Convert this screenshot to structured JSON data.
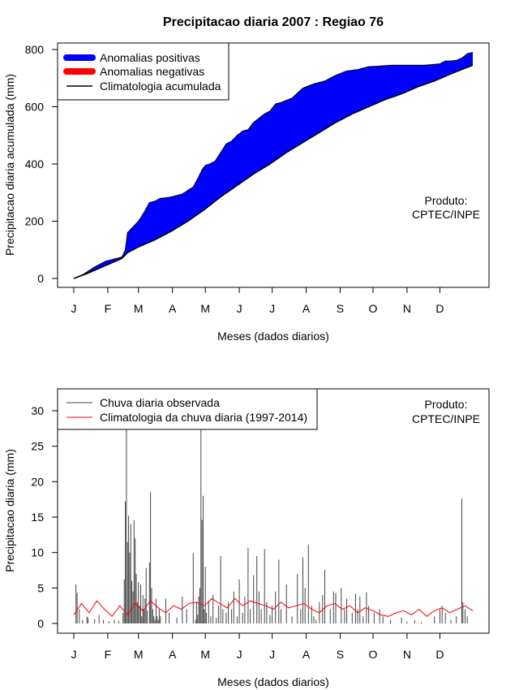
{
  "figure_title": "Precipitacao diaria 2007 : Regiao 76",
  "chart_data": [
    {
      "type": "area",
      "title": "Precipitacao diaria 2007 : Regiao 76",
      "xlabel": "Meses (dados diarios)",
      "ylabel": "Precipitacao diaria acumulada (mm)",
      "ylim": [
        0,
        800
      ],
      "yticks": [
        0,
        200,
        400,
        600,
        800
      ],
      "xlim": [
        1,
        365
      ],
      "month_ticks": {
        "days": [
          1,
          32,
          60,
          91,
          121,
          152,
          182,
          213,
          244,
          274,
          305,
          335
        ],
        "labels": [
          "J",
          "F",
          "M",
          "A",
          "M",
          "J",
          "J",
          "A",
          "S",
          "O",
          "N",
          "D"
        ]
      },
      "legend": [
        "Anomalias positivas",
        "Anomalias negativas",
        "Climatologia acumulada"
      ],
      "legend_position": "top-left",
      "annotation": [
        "Produto:",
        "CPTEC/INPE"
      ],
      "colors": {
        "positive": "#0000ff",
        "negative": "#ff0000",
        "line": "#000000"
      },
      "observed_cumulative": {
        "day": [
          1,
          10,
          20,
          30,
          40,
          45,
          48,
          50,
          60,
          65,
          70,
          75,
          80,
          85,
          90,
          100,
          110,
          115,
          118,
          121,
          125,
          130,
          135,
          140,
          145,
          150,
          155,
          160,
          165,
          170,
          175,
          180,
          185,
          190,
          200,
          210,
          220,
          230,
          240,
          250,
          260,
          270,
          280,
          290,
          300,
          310,
          320,
          330,
          335,
          340,
          345,
          350,
          355,
          360,
          365
        ],
        "mm": [
          0,
          15,
          40,
          60,
          70,
          75,
          100,
          160,
          200,
          230,
          265,
          270,
          280,
          282,
          285,
          295,
          320,
          355,
          380,
          395,
          400,
          410,
          440,
          470,
          480,
          500,
          515,
          520,
          545,
          560,
          575,
          585,
          610,
          615,
          630,
          665,
          680,
          690,
          710,
          725,
          730,
          740,
          742,
          745,
          745,
          745,
          745,
          748,
          750,
          760,
          760,
          762,
          770,
          785,
          790
        ]
      },
      "climatology_cumulative": {
        "day": [
          1,
          15,
          30,
          45,
          50,
          60,
          75,
          90,
          105,
          120,
          135,
          150,
          165,
          180,
          195,
          210,
          225,
          240,
          255,
          270,
          285,
          300,
          315,
          330,
          345,
          365
        ],
        "mm": [
          0,
          20,
          45,
          70,
          90,
          110,
          135,
          165,
          200,
          240,
          285,
          325,
          365,
          400,
          440,
          475,
          510,
          545,
          575,
          600,
          625,
          645,
          670,
          690,
          715,
          745
        ]
      }
    },
    {
      "type": "bar",
      "xlabel": "Meses (dados diarios)",
      "ylabel": "Precipitacao diaria (mm)",
      "ylim": [
        0,
        32
      ],
      "yticks": [
        0,
        5,
        10,
        15,
        20,
        25,
        30
      ],
      "xlim": [
        1,
        365
      ],
      "month_ticks": {
        "days": [
          1,
          32,
          60,
          91,
          121,
          152,
          182,
          213,
          244,
          274,
          305,
          335
        ],
        "labels": [
          "J",
          "F",
          "M",
          "A",
          "M",
          "J",
          "J",
          "A",
          "S",
          "O",
          "N",
          "D"
        ]
      },
      "legend": [
        "Chuva diaria observada",
        "Climatologia da chuva diaria (1997-2014)"
      ],
      "legend_position": "top-left",
      "annotation": [
        "Produto:",
        "CPTEC/INPE"
      ],
      "colors": {
        "observed": "#444444",
        "climatology": "#ff0000"
      },
      "observed_daily": {
        "day": [
          3,
          4,
          6,
          9,
          13,
          14,
          20,
          24,
          28,
          33,
          38,
          42,
          46,
          47,
          48,
          49,
          50,
          51,
          52,
          53,
          54,
          55,
          56,
          57,
          58,
          59,
          60,
          61,
          62,
          63,
          64,
          65,
          66,
          67,
          68,
          70,
          71,
          72,
          73,
          74,
          75,
          76,
          77,
          78,
          79,
          80,
          85,
          88,
          95,
          100,
          104,
          110,
          112,
          113,
          114,
          115,
          116,
          117,
          118,
          119,
          120,
          121,
          122,
          124,
          126,
          128,
          131,
          133,
          135,
          137,
          140,
          142,
          145,
          147,
          150,
          152,
          155,
          157,
          160,
          162,
          165,
          168,
          170,
          172,
          175,
          177,
          180,
          182,
          185,
          188,
          190,
          195,
          200,
          205,
          208,
          210,
          212,
          215,
          218,
          220,
          222,
          225,
          228,
          230,
          235,
          238,
          240,
          245,
          248,
          250,
          255,
          258,
          260,
          262,
          265,
          268,
          270,
          275,
          280,
          283,
          290,
          300,
          305,
          312,
          318,
          330,
          335,
          337,
          340,
          345,
          350,
          355,
          356,
          358,
          360
        ],
        "mm": [
          5.5,
          4.3,
          2.0,
          0.5,
          1.0,
          0.8,
          0.6,
          1.2,
          0.5,
          0.3,
          0.5,
          0.4,
          1.5,
          6.2,
          17.2,
          32,
          11.5,
          15.2,
          10.0,
          14.0,
          6.0,
          4.5,
          14.6,
          12.0,
          7.0,
          3.0,
          5.8,
          2.5,
          5.5,
          1.0,
          4.0,
          2.0,
          3.5,
          7.8,
          1.8,
          8.6,
          18.5,
          5.0,
          2.0,
          1.0,
          0.5,
          3.5,
          1.0,
          0.5,
          2.0,
          1.0,
          3.5,
          1.5,
          0.8,
          3.8,
          2.0,
          9.9,
          0.5,
          3.0,
          1.2,
          3.8,
          5.0,
          32,
          14.6,
          18.0,
          2.0,
          8.0,
          1.5,
          3.2,
          1.0,
          4.0,
          0.8,
          2.5,
          9.5,
          2.0,
          1.5,
          3.0,
          2.0,
          4.5,
          1.0,
          6.2,
          1.5,
          3.8,
          10.7,
          2.0,
          6.8,
          9.5,
          4.5,
          2.0,
          10.5,
          3.0,
          1.2,
          2.5,
          4.5,
          9.0,
          2.0,
          5.5,
          1.0,
          7.0,
          2.0,
          9.3,
          5.0,
          11.1,
          2.5,
          1.0,
          0.5,
          3.0,
          4.0,
          7.6,
          2.0,
          4.5,
          4.3,
          5.0,
          2.0,
          3.5,
          1.5,
          4.2,
          2.0,
          3.8,
          1.0,
          4.4,
          2.5,
          1.5,
          2.0,
          1.0,
          0.5,
          0.8,
          0.3,
          0.5,
          0.2,
          1.0,
          2.0,
          2.5,
          1.5,
          0.5,
          1.0,
          17.6,
          3.0,
          2.0,
          1.0
        ]
      },
      "climatology_daily": {
        "day": [
          1,
          8,
          15,
          22,
          29,
          36,
          43,
          50,
          57,
          64,
          71,
          78,
          85,
          92,
          99,
          106,
          113,
          120,
          127,
          134,
          141,
          148,
          155,
          162,
          169,
          176,
          183,
          190,
          197,
          204,
          211,
          218,
          225,
          232,
          239,
          246,
          253,
          260,
          267,
          274,
          281,
          288,
          295,
          302,
          309,
          316,
          323,
          330,
          337,
          344,
          351,
          358,
          365
        ],
        "mm": [
          1.2,
          2.8,
          1.5,
          3.2,
          2.0,
          1.0,
          2.5,
          1.2,
          2.8,
          1.8,
          3.2,
          2.2,
          1.5,
          2.5,
          2.0,
          2.8,
          3.0,
          2.5,
          3.5,
          2.8,
          2.2,
          3.5,
          2.5,
          3.2,
          2.8,
          2.5,
          2.0,
          3.0,
          2.2,
          2.5,
          2.8,
          2.0,
          1.5,
          2.5,
          2.8,
          2.0,
          2.5,
          1.5,
          2.2,
          1.8,
          1.2,
          1.0,
          1.5,
          1.8,
          1.2,
          2.0,
          1.0,
          1.8,
          2.2,
          1.5,
          2.0,
          2.5,
          1.8
        ]
      }
    }
  ]
}
